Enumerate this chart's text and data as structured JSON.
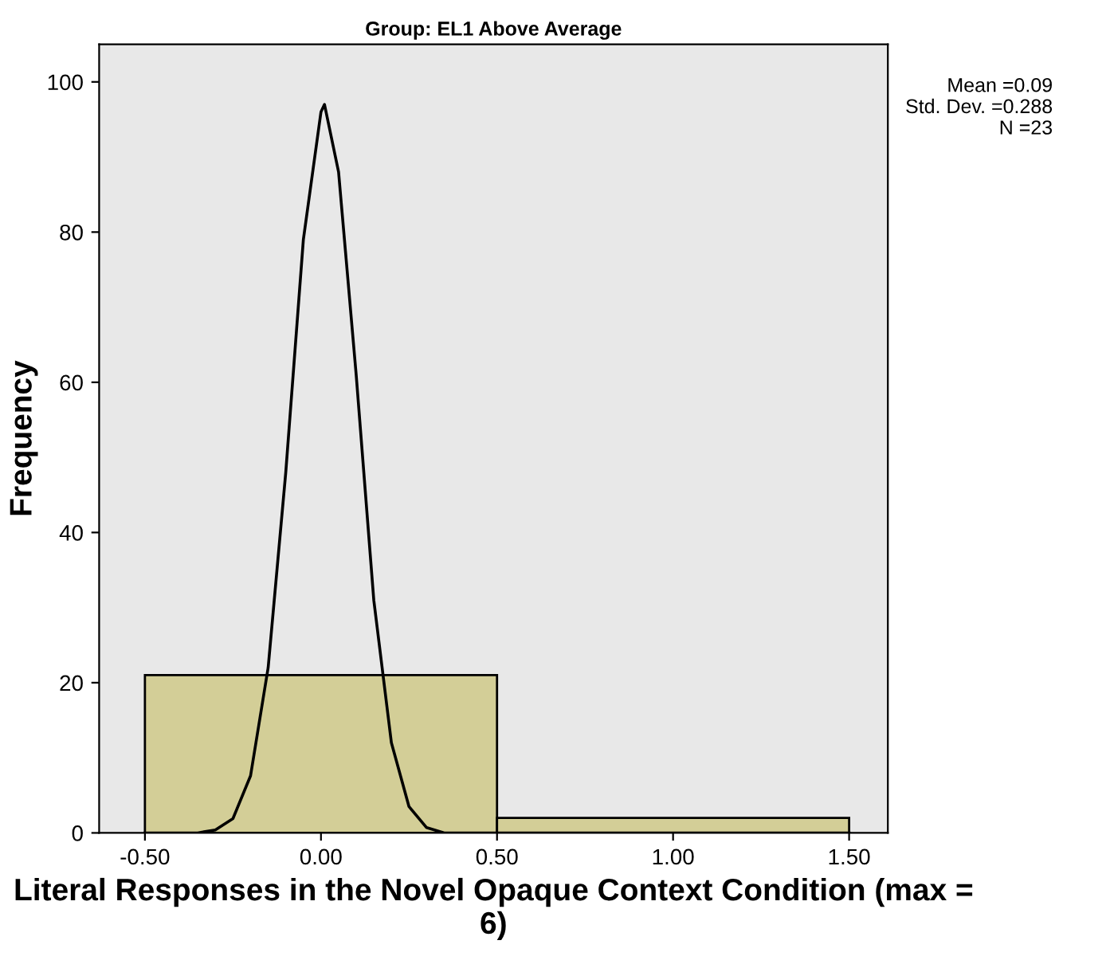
{
  "chart_data": {
    "type": "histogram",
    "title": "Group: EL1 Above Average",
    "xlabel": "Literal Responses in the Novel Opaque Context Condition (max = 6)",
    "ylabel": "Frequency",
    "bins": [
      -0.5,
      0.5,
      1.5
    ],
    "values": [
      21,
      2
    ],
    "color": "#d3ce97",
    "series": [
      {
        "type": "line",
        "color": "#000000",
        "x": [
          -0.5,
          -0.35,
          -0.3,
          -0.25,
          -0.2,
          -0.15,
          -0.1,
          -0.05,
          0.0,
          0.01,
          0.05,
          0.1,
          0.15,
          0.2,
          0.25,
          0.3,
          0.35,
          0.5,
          1.0,
          1.5
        ],
        "values": [
          0,
          0,
          0.4,
          1.9,
          7.6,
          22,
          48,
          79,
          96,
          97,
          88,
          61,
          31,
          12,
          3.5,
          0.7,
          0,
          0,
          0,
          0
        ]
      }
    ],
    "xlim": [
      -0.63,
      1.61
    ],
    "ylim": [
      0,
      105
    ],
    "xticks": [
      {
        "value": -0.5,
        "label": "-0.50"
      },
      {
        "value": 0,
        "label": "0.00"
      },
      {
        "value": 0.5,
        "label": "0.50"
      },
      {
        "value": 1,
        "label": "1.00"
      },
      {
        "value": 1.5,
        "label": "1.50"
      }
    ],
    "yticks": [
      0,
      20,
      40,
      60,
      80,
      100
    ],
    "grid": false,
    "annotations": [
      "Mean =0.09",
      "Std. Dev. =0.288",
      "N =23"
    ]
  }
}
